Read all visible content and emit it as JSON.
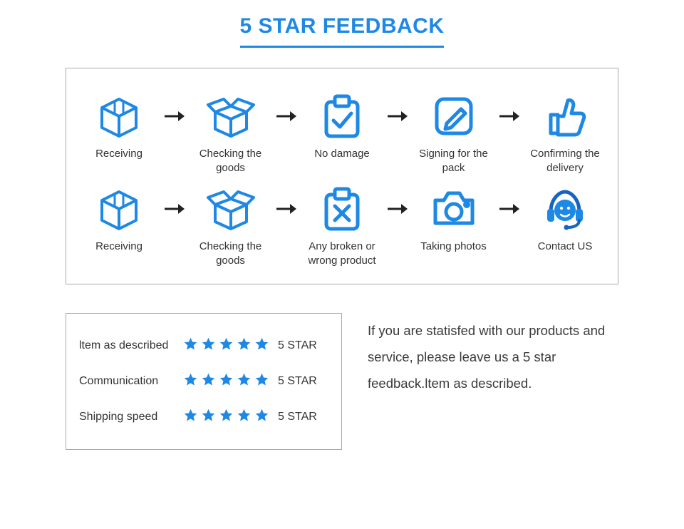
{
  "colors": {
    "accent": "#1e88e5",
    "accent_dark": "#1565c0",
    "text": "#333333",
    "border": "#aaaaaa",
    "arrow": "#222222",
    "star": "#1e88e5"
  },
  "title": "5 STAR FEEDBACK",
  "flow": {
    "row1": [
      {
        "icon": "box-closed",
        "label": "Receiving"
      },
      {
        "icon": "box-open",
        "label": "Checking the goods"
      },
      {
        "icon": "clipboard-check",
        "label": "No damage"
      },
      {
        "icon": "sign",
        "label": "Signing for the pack"
      },
      {
        "icon": "thumbs-up",
        "label": "Confirming the delivery"
      }
    ],
    "row2": [
      {
        "icon": "box-closed",
        "label": "Receiving"
      },
      {
        "icon": "box-open",
        "label": "Checking the goods"
      },
      {
        "icon": "clipboard-x",
        "label": "Any broken or wrong product"
      },
      {
        "icon": "camera",
        "label": "Taking photos"
      },
      {
        "icon": "headset",
        "label": "Contact US"
      }
    ]
  },
  "ratings": [
    {
      "label": "ltem as described",
      "stars": 5,
      "text": "5 STAR"
    },
    {
      "label": "Communication",
      "stars": 5,
      "text": "5 STAR"
    },
    {
      "label": "Shipping speed",
      "stars": 5,
      "text": "5 STAR"
    }
  ],
  "blurb": "If you are statisfed with our products and service, please leave us a 5 star feedback.ltem as described."
}
